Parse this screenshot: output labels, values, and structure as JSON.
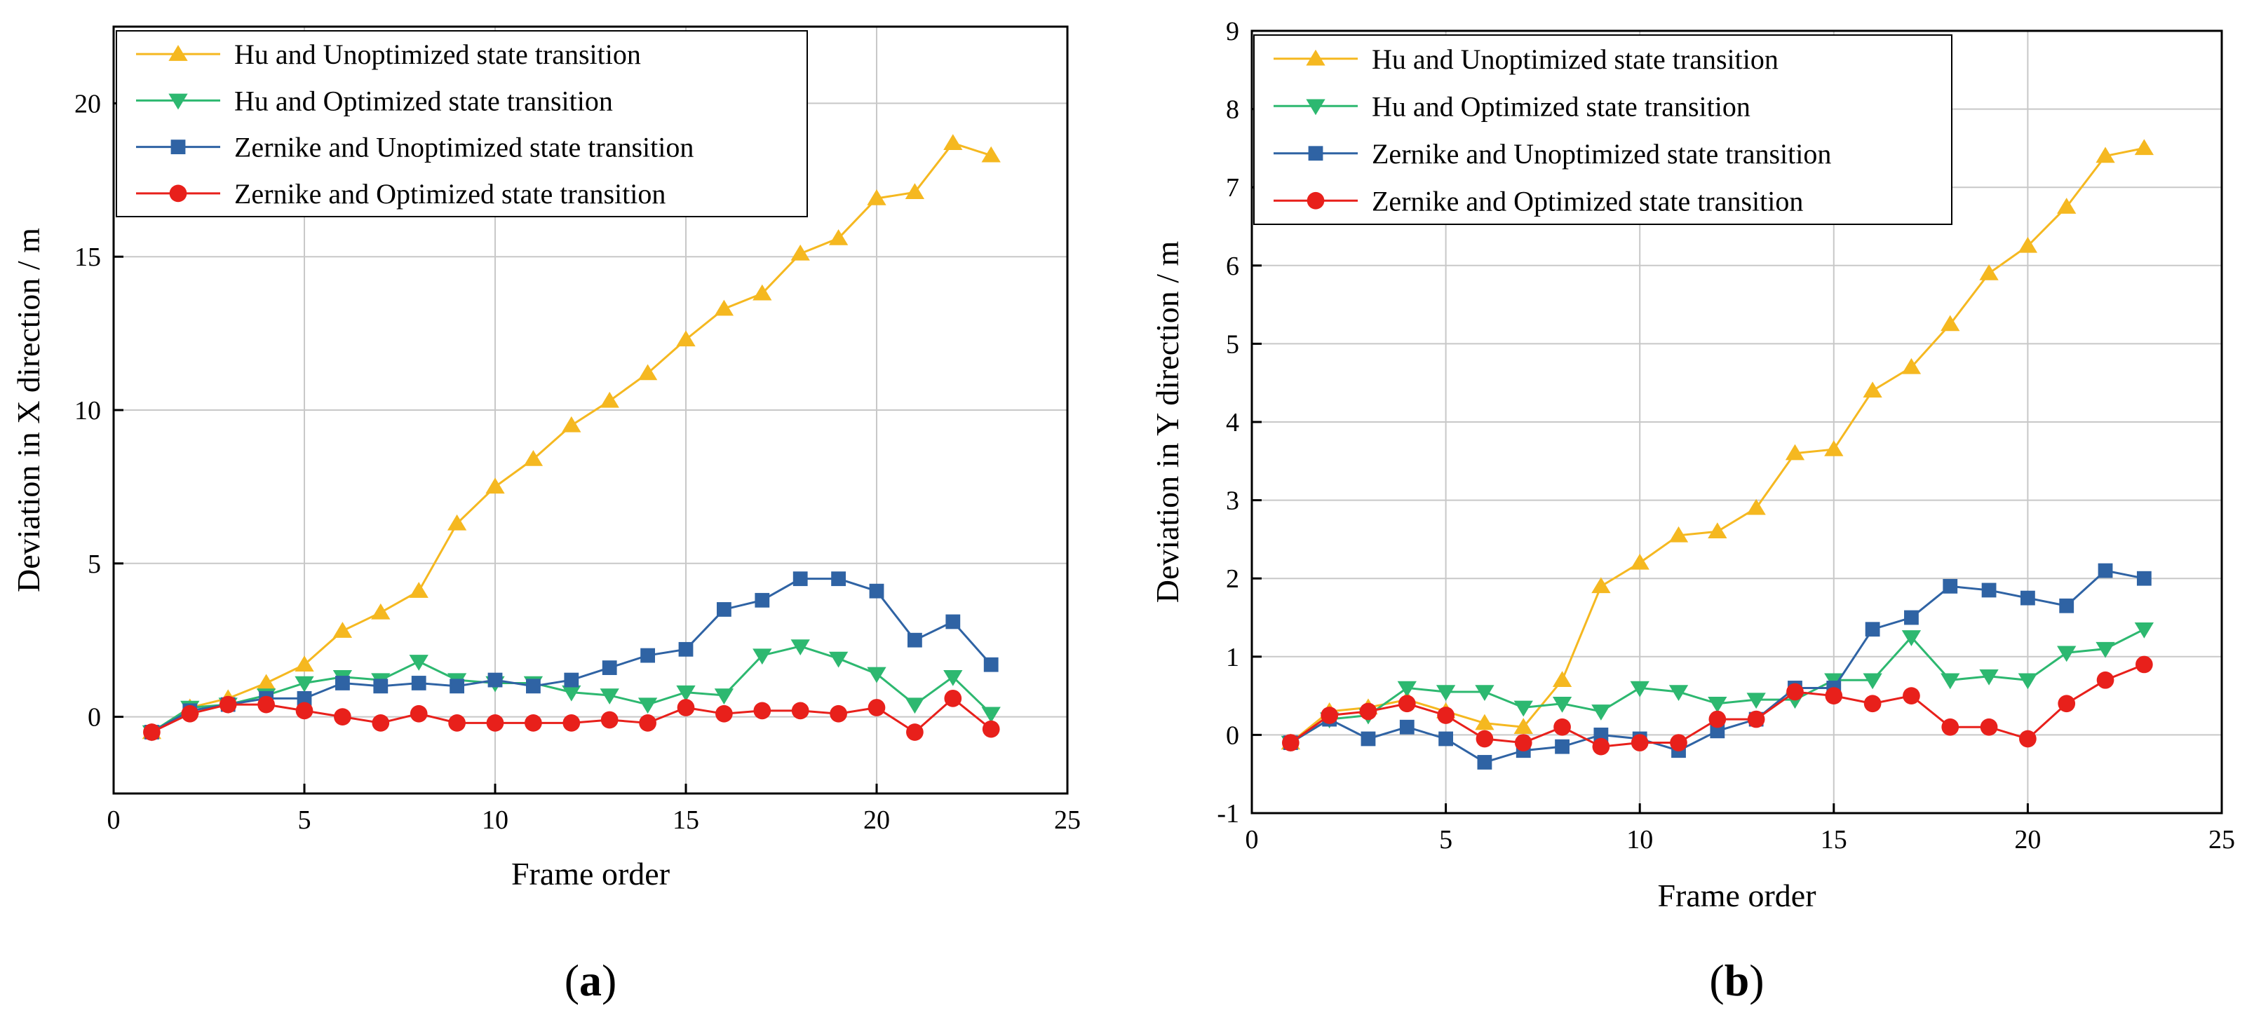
{
  "chart_data": [
    {
      "type": "line",
      "panel_label": "a",
      "xlabel": "Frame order",
      "ylabel": "Deviation in X direction / m",
      "xlim": [
        0,
        25
      ],
      "ylim": [
        -2.5,
        22.5
      ],
      "xticks": [
        0,
        5,
        10,
        15,
        20,
        25
      ],
      "yticks": [
        0,
        5,
        10,
        15,
        20
      ],
      "grid": true,
      "legend_position": "top-left",
      "x": [
        1,
        2,
        3,
        4,
        5,
        6,
        7,
        8,
        9,
        10,
        11,
        12,
        13,
        14,
        15,
        16,
        17,
        18,
        19,
        20,
        21,
        22,
        23
      ],
      "series": [
        {
          "name": "Hu and Unoptimized state transition",
          "color": "#F5B820",
          "marker": "triangle-up",
          "values": [
            -0.5,
            0.3,
            0.6,
            1.1,
            1.7,
            2.8,
            3.4,
            4.1,
            6.3,
            7.5,
            8.4,
            9.5,
            10.3,
            11.2,
            12.3,
            13.3,
            13.8,
            15.1,
            15.6,
            16.9,
            17.1,
            18.7,
            18.3
          ]
        },
        {
          "name": "Hu and Optimized state transition",
          "color": "#2DB870",
          "marker": "triangle-down",
          "values": [
            -0.5,
            0.3,
            0.4,
            0.7,
            1.1,
            1.3,
            1.2,
            1.8,
            1.2,
            1.1,
            1.1,
            0.8,
            0.7,
            0.4,
            0.8,
            0.7,
            2.0,
            2.3,
            1.9,
            1.4,
            0.4,
            1.3,
            0.1
          ]
        },
        {
          "name": "Zernike and Unoptimized state transition",
          "color": "#2F63A4",
          "marker": "square",
          "values": [
            -0.5,
            0.2,
            0.4,
            0.6,
            0.6,
            1.1,
            1.0,
            1.1,
            1.0,
            1.2,
            1.0,
            1.2,
            1.6,
            2.0,
            2.2,
            3.5,
            3.8,
            4.5,
            4.5,
            4.1,
            2.5,
            3.1,
            1.7
          ]
        },
        {
          "name": "Zernike and Optimized state transition",
          "color": "#E8201B",
          "marker": "circle",
          "values": [
            -0.5,
            0.1,
            0.4,
            0.4,
            0.2,
            0.0,
            -0.2,
            0.1,
            -0.2,
            -0.2,
            -0.2,
            -0.2,
            -0.1,
            -0.2,
            0.3,
            0.1,
            0.2,
            0.2,
            0.1,
            0.3,
            -0.5,
            0.6,
            -0.4
          ]
        }
      ]
    },
    {
      "type": "line",
      "panel_label": "b",
      "xlabel": "Frame order",
      "ylabel": "Deviation in Y direction / m",
      "xlim": [
        0,
        25
      ],
      "ylim": [
        -1,
        9
      ],
      "xticks": [
        0,
        5,
        10,
        15,
        20,
        25
      ],
      "yticks": [
        -1,
        0,
        1,
        2,
        3,
        4,
        5,
        6,
        7,
        8,
        9
      ],
      "grid": true,
      "legend_position": "top-left",
      "x": [
        1,
        2,
        3,
        4,
        5,
        6,
        7,
        8,
        9,
        10,
        11,
        12,
        13,
        14,
        15,
        16,
        17,
        18,
        19,
        20,
        21,
        22,
        23
      ],
      "series": [
        {
          "name": "Hu and Unoptimized state transition",
          "color": "#F5B820",
          "marker": "triangle-up",
          "values": [
            -0.1,
            0.3,
            0.35,
            0.45,
            0.3,
            0.15,
            0.1,
            0.7,
            1.9,
            2.2,
            2.55,
            2.6,
            2.9,
            3.6,
            3.65,
            4.4,
            4.7,
            5.25,
            5.9,
            6.25,
            6.75,
            7.4,
            7.5
          ]
        },
        {
          "name": "Hu and Optimized state transition",
          "color": "#2DB870",
          "marker": "triangle-down",
          "values": [
            -0.1,
            0.2,
            0.25,
            0.6,
            0.55,
            0.55,
            0.35,
            0.4,
            0.3,
            0.6,
            0.55,
            0.4,
            0.45,
            0.45,
            0.7,
            0.7,
            1.25,
            0.7,
            0.75,
            0.7,
            1.05,
            1.1,
            1.35
          ]
        },
        {
          "name": "Zernike and Unoptimized state transition",
          "color": "#2F63A4",
          "marker": "square",
          "values": [
            -0.1,
            0.2,
            -0.05,
            0.1,
            -0.05,
            -0.35,
            -0.2,
            -0.15,
            0.0,
            -0.05,
            -0.2,
            0.05,
            0.2,
            0.6,
            0.6,
            1.35,
            1.5,
            1.9,
            1.85,
            1.75,
            1.65,
            2.1,
            2.0
          ]
        },
        {
          "name": "Zernike and Optimized state transition",
          "color": "#E8201B",
          "marker": "circle",
          "values": [
            -0.1,
            0.25,
            0.3,
            0.4,
            0.25,
            -0.05,
            -0.1,
            0.1,
            -0.15,
            -0.1,
            -0.1,
            0.2,
            0.2,
            0.55,
            0.5,
            0.4,
            0.5,
            0.1,
            0.1,
            -0.05,
            0.4,
            0.7,
            0.9
          ]
        }
      ]
    }
  ]
}
